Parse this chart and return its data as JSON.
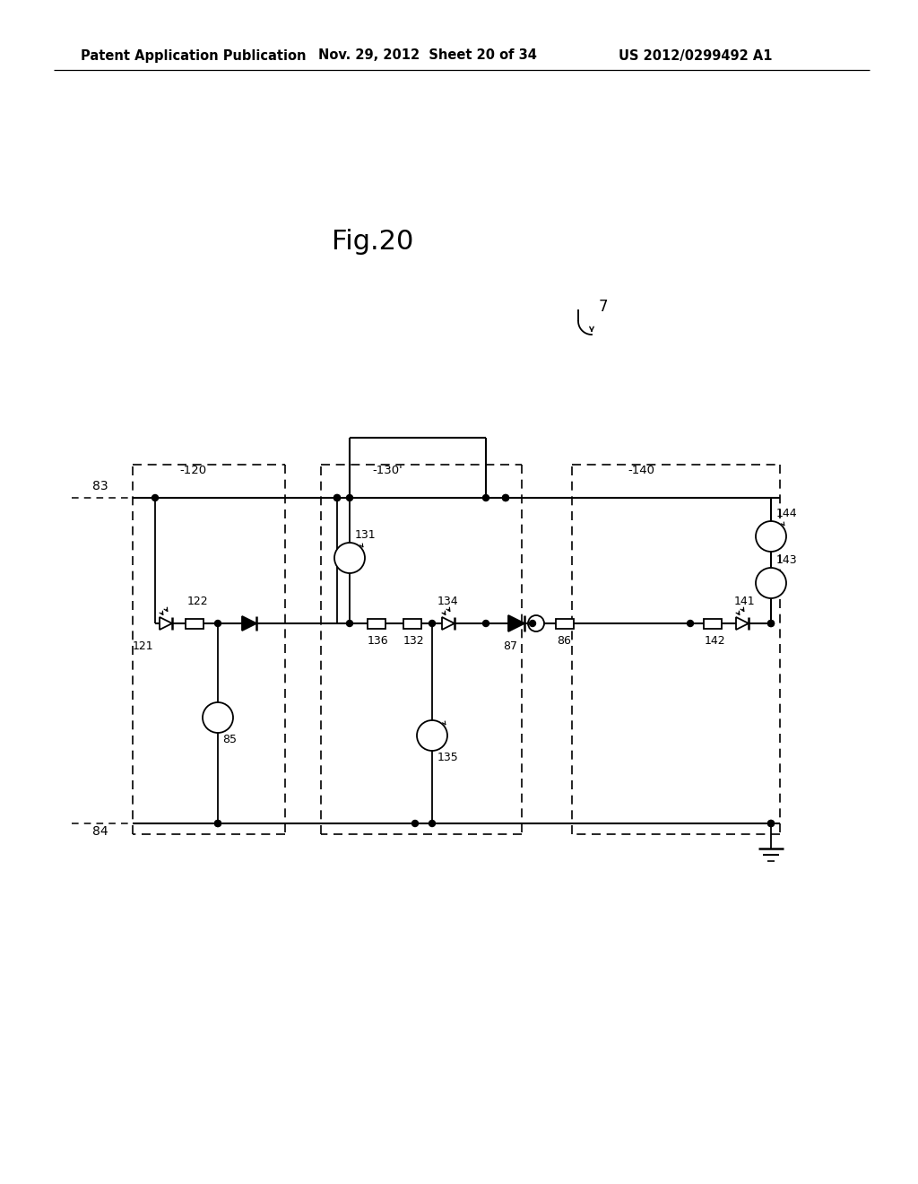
{
  "title": "Fig.20",
  "header_left": "Patent Application Publication",
  "header_mid": "Nov. 29, 2012  Sheet 20 of 34",
  "header_right": "US 2012/0299492 A1",
  "bg_color": "#ffffff",
  "text_color": "#000000"
}
